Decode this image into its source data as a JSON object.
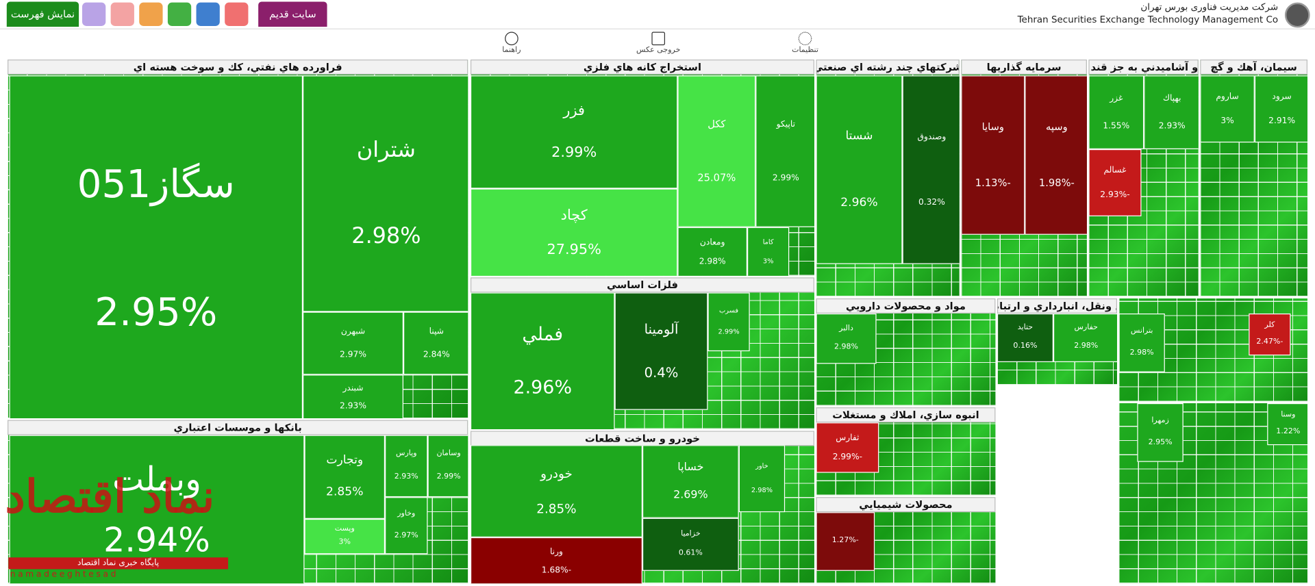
{
  "header": {
    "buttons": [
      "نمایش فهرست",
      "سایت قدیم"
    ],
    "company_fa": "شرکت مدیریت فناوری بورس تهران",
    "company_en": "Tehran Securities Exchange Technology Management Co"
  },
  "toolbar": [
    "راهنما",
    "خروجی عکس",
    "تنظیمات"
  ],
  "sectors": [
    {
      "title": "فراورده هاي نفتي، كك و سوخت هسته اي",
      "tiles": [
        {
          "symbol": "سگاز051",
          "change": "2.95%"
        },
        {
          "symbol": "شتران",
          "change": "2.98%"
        },
        {
          "symbol": "شبهرن",
          "change": "2.97%"
        },
        {
          "symbol": "شپنا",
          "change": "2.84%"
        },
        {
          "symbol": "شبندر",
          "change": "2.93%"
        }
      ]
    },
    {
      "title": "بانكها و موسسات اعتباري",
      "tiles": [
        {
          "symbol": "وبملت",
          "change": "2.94%"
        },
        {
          "symbol": "وتجارت",
          "change": "2.85%"
        },
        {
          "symbol": "وپارس",
          "change": "2.93%"
        },
        {
          "symbol": "وسامان",
          "change": "2.99%"
        },
        {
          "symbol": "وپست",
          "change": "3%"
        },
        {
          "symbol": "وخاور",
          "change": "2.97%"
        }
      ]
    },
    {
      "title": "استخراج كانه هاي فلزي",
      "tiles": [
        {
          "symbol": "فزر",
          "change": "2.99%"
        },
        {
          "symbol": "كچاد",
          "change": "27.95%"
        },
        {
          "symbol": "ككل",
          "change": "25.07%"
        },
        {
          "symbol": "تاپيكو",
          "change": "2.99%"
        },
        {
          "symbol": "ومعادن",
          "change": "2.98%"
        },
        {
          "symbol": "كاما",
          "change": "3%"
        }
      ]
    },
    {
      "title": "فلزات اساسي",
      "tiles": [
        {
          "symbol": "فملي",
          "change": "2.96%"
        },
        {
          "symbol": "آلومينا",
          "change": "0.4%"
        },
        {
          "symbol": "فسرب",
          "change": "2.99%"
        }
      ]
    },
    {
      "title": "خودرو و ساخت قطعات",
      "tiles": [
        {
          "symbol": "خودرو",
          "change": "2.85%"
        },
        {
          "symbol": "خساپا",
          "change": "2.69%"
        },
        {
          "symbol": "خزاميا",
          "change": "0.61%"
        },
        {
          "symbol": "ورنا",
          "change": "-1.68%"
        },
        {
          "symbol": "خاور",
          "change": "2.98%"
        }
      ]
    },
    {
      "title": "شركتهاي چند رشته اي صنعتي",
      "tiles": [
        {
          "symbol": "شستا",
          "change": "2.96%"
        },
        {
          "symbol": "وصندوق",
          "change": "0.32%"
        }
      ]
    },
    {
      "title": "سرمايه گذاريها",
      "tiles": [
        {
          "symbol": "وسايا",
          "change": "-1.13%"
        },
        {
          "symbol": "وسپه",
          "change": "-1.98%"
        }
      ]
    },
    {
      "title": "غذايي و آشاميدني به جز قند و شكر",
      "tiles": [
        {
          "symbol": "غزر",
          "change": "1.55%"
        },
        {
          "symbol": "بهپاك",
          "change": "2.93%"
        },
        {
          "symbol": "غسالم",
          "change": "-2.93%"
        }
      ]
    },
    {
      "title": "سيمان، آهك و گچ",
      "tiles": [
        {
          "symbol": "ساروم",
          "change": "3%"
        },
        {
          "symbol": "سرود",
          "change": "2.91%"
        }
      ]
    },
    {
      "title": "مواد و محصولات دارويي",
      "tiles": [
        {
          "symbol": "دالبر",
          "change": "2.98%"
        }
      ]
    },
    {
      "title": "انبوه سازي، املاك و مستغلات",
      "tiles": [
        {
          "symbol": "ثفارس",
          "change": "-2.99%"
        }
      ]
    },
    {
      "title": "محصولات شيميايي",
      "tiles": [
        {
          "change": "-1.27%"
        }
      ]
    },
    {
      "title": "حمل ونقل، انبارداري و ارتباطات",
      "tiles": [
        {
          "symbol": "حتايد",
          "change": "0.16%"
        },
        {
          "symbol": "حفارس",
          "change": "2.98%"
        }
      ]
    },
    {
      "tiles": [
        {
          "symbol": "بترانس",
          "change": "2.98%"
        },
        {
          "symbol": "كلر",
          "change": "-2.47%"
        }
      ]
    },
    {
      "tiles": [
        {
          "symbol": "زمهرا",
          "change": "2.95%"
        },
        {
          "symbol": "وسنا",
          "change": "1.22%"
        }
      ]
    }
  ],
  "watermark": {
    "logo": "نماد اقتصاد",
    "caption": "پایگاه خبری نماد اقتصاد",
    "url": "namadeeghtesad"
  }
}
